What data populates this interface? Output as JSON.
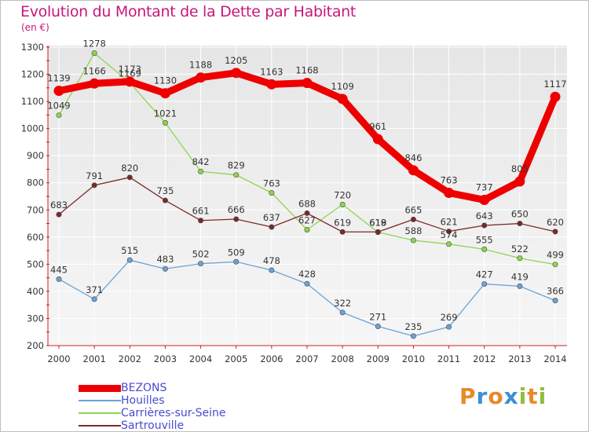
{
  "header": {
    "title": "Evolution du Montant de la Dette par Habitant",
    "unit": "(en €)"
  },
  "chart_data": {
    "type": "line",
    "x": [
      "2000",
      "2001",
      "2002",
      "2003",
      "2004",
      "2005",
      "2006",
      "2007",
      "2008",
      "2009",
      "2010",
      "2011",
      "2012",
      "2013",
      "2014"
    ],
    "ylim": [
      200,
      1300
    ],
    "yticks": [
      200,
      300,
      400,
      500,
      600,
      700,
      800,
      900,
      1000,
      1100,
      1200,
      1300
    ],
    "grid": true,
    "legend": "bottom-left",
    "series": [
      {
        "name": "BEZONS",
        "color": "#ee0000",
        "values": [
          1139,
          1166,
          1173,
          1130,
          1188,
          1205,
          1163,
          1168,
          1109,
          961,
          846,
          763,
          737,
          805,
          1117
        ]
      },
      {
        "name": "Houilles",
        "color": "#6ba3d6",
        "values": [
          445,
          371,
          515,
          483,
          502,
          509,
          478,
          428,
          322,
          271,
          235,
          269,
          427,
          419,
          366
        ]
      },
      {
        "name": "Carrières-sur-Seine",
        "color": "#8fd44f",
        "values": [
          1049,
          1278,
          1169,
          1021,
          842,
          829,
          763,
          627,
          720,
          618,
          588,
          574,
          555,
          522,
          499
        ]
      },
      {
        "name": "Sartrouville",
        "color": "#7a2a2a",
        "values": [
          683,
          791,
          820,
          735,
          661,
          666,
          637,
          688,
          619,
          619,
          665,
          621,
          643,
          650,
          620
        ]
      }
    ]
  },
  "logo": {
    "letters": [
      "P",
      "r",
      "o",
      "x",
      "i",
      "t",
      "i"
    ]
  }
}
